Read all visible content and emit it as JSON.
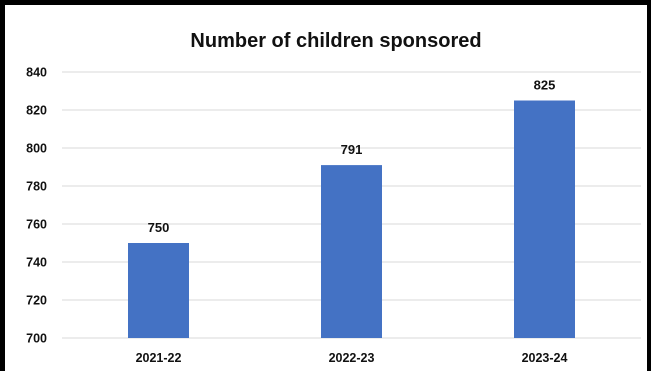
{
  "chart_data": {
    "type": "bar",
    "title": "Number of children sponsored",
    "xlabel": "",
    "ylabel": "",
    "categories": [
      "2021-22",
      "2022-23",
      "2023-24"
    ],
    "values": [
      750,
      791,
      825
    ],
    "data_labels": [
      "750",
      "791",
      "825"
    ],
    "ylim": [
      700,
      840
    ],
    "yticks": [
      700,
      720,
      740,
      760,
      780,
      800,
      820,
      840
    ],
    "ytick_labels": [
      "700",
      "720",
      "740",
      "760",
      "780",
      "800",
      "820",
      "840"
    ],
    "grid": true,
    "legend": "none",
    "bar_color": "#4472c4"
  }
}
